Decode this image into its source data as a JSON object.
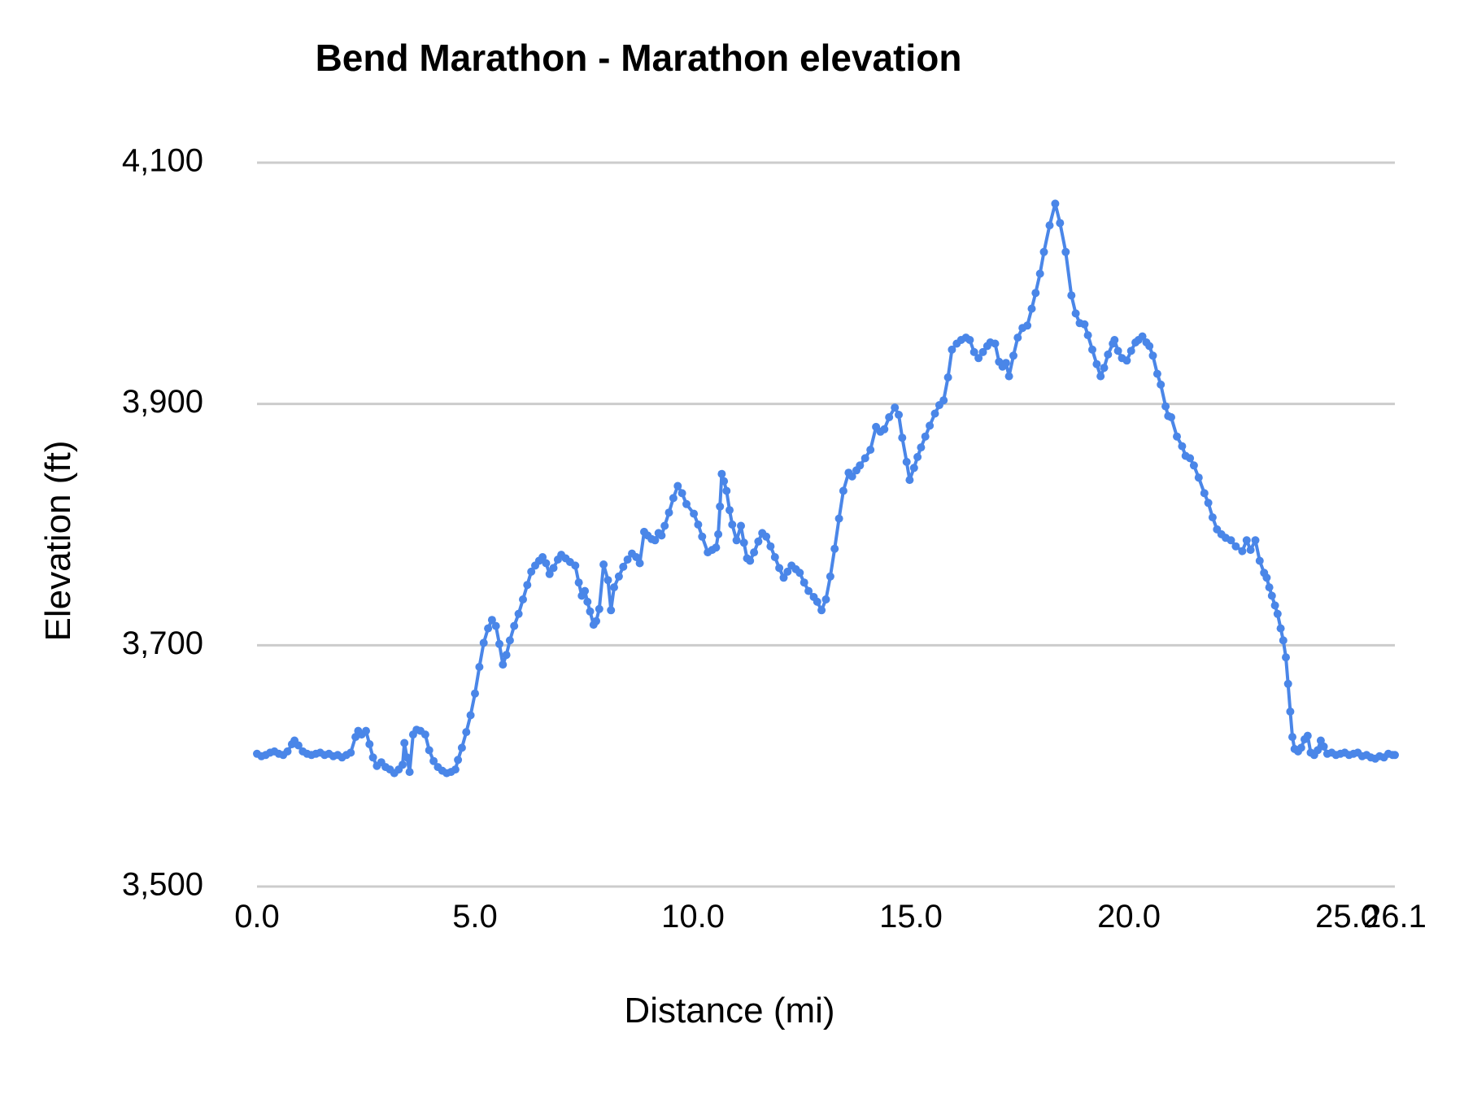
{
  "chart_data": {
    "type": "line",
    "title": "Bend Marathon - Marathon elevation",
    "xlabel": "Distance (mi)",
    "ylabel": "Elevation (ft)",
    "xlim": [
      0,
      26.1
    ],
    "ylim": [
      3500,
      4100
    ],
    "grid": "horizontal-only",
    "legend": "none",
    "marker_style": "point-line",
    "colors": {
      "series": "#4a86e8",
      "gridline": "#cccccc",
      "text": "#000000",
      "background": "#ffffff"
    },
    "x_ticks": [
      {
        "value": 0,
        "label": "0.0"
      },
      {
        "value": 5,
        "label": "5.0"
      },
      {
        "value": 10,
        "label": "10.0"
      },
      {
        "value": 15,
        "label": "15.0"
      },
      {
        "value": 20,
        "label": "20.0"
      },
      {
        "value": 25,
        "label": "25.0"
      },
      {
        "value": 26.1,
        "label": "26.1"
      }
    ],
    "y_ticks": [
      {
        "value": 3500,
        "label": "3,500"
      },
      {
        "value": 3700,
        "label": "3,700"
      },
      {
        "value": 3900,
        "label": "3,900"
      },
      {
        "value": 4100,
        "label": "4,100"
      }
    ],
    "series": [
      {
        "name": "Marathon elevation",
        "points": [
          [
            0.0,
            3610
          ],
          [
            0.1,
            3608
          ],
          [
            0.2,
            3609
          ],
          [
            0.3,
            3611
          ],
          [
            0.4,
            3612
          ],
          [
            0.5,
            3610
          ],
          [
            0.6,
            3609
          ],
          [
            0.7,
            3612
          ],
          [
            0.8,
            3618
          ],
          [
            0.86,
            3621
          ],
          [
            0.95,
            3617
          ],
          [
            1.05,
            3612
          ],
          [
            1.15,
            3610
          ],
          [
            1.25,
            3609
          ],
          [
            1.35,
            3610
          ],
          [
            1.45,
            3611
          ],
          [
            1.55,
            3609
          ],
          [
            1.65,
            3610
          ],
          [
            1.75,
            3608
          ],
          [
            1.85,
            3609
          ],
          [
            1.95,
            3607
          ],
          [
            2.05,
            3609
          ],
          [
            2.15,
            3611
          ],
          [
            2.26,
            3624
          ],
          [
            2.32,
            3629
          ],
          [
            2.4,
            3626
          ],
          [
            2.5,
            3629
          ],
          [
            2.58,
            3618
          ],
          [
            2.66,
            3607
          ],
          [
            2.75,
            3600
          ],
          [
            2.85,
            3603
          ],
          [
            2.95,
            3599
          ],
          [
            3.05,
            3597
          ],
          [
            3.15,
            3594
          ],
          [
            3.25,
            3597
          ],
          [
            3.34,
            3601
          ],
          [
            3.38,
            3619
          ],
          [
            3.44,
            3607
          ],
          [
            3.5,
            3595
          ],
          [
            3.58,
            3626
          ],
          [
            3.66,
            3630
          ],
          [
            3.75,
            3629
          ],
          [
            3.86,
            3626
          ],
          [
            3.95,
            3613
          ],
          [
            4.05,
            3604
          ],
          [
            4.15,
            3599
          ],
          [
            4.25,
            3596
          ],
          [
            4.35,
            3594
          ],
          [
            4.45,
            3595
          ],
          [
            4.55,
            3597
          ],
          [
            4.61,
            3605
          ],
          [
            4.7,
            3615
          ],
          [
            4.8,
            3628
          ],
          [
            4.9,
            3642
          ],
          [
            5.0,
            3660
          ],
          [
            5.1,
            3682
          ],
          [
            5.2,
            3702
          ],
          [
            5.3,
            3714
          ],
          [
            5.39,
            3721
          ],
          [
            5.48,
            3716
          ],
          [
            5.56,
            3701
          ],
          [
            5.64,
            3684
          ],
          [
            5.72,
            3692
          ],
          [
            5.8,
            3704
          ],
          [
            5.9,
            3716
          ],
          [
            6.0,
            3726
          ],
          [
            6.1,
            3738
          ],
          [
            6.2,
            3750
          ],
          [
            6.29,
            3761
          ],
          [
            6.38,
            3766
          ],
          [
            6.47,
            3770
          ],
          [
            6.55,
            3773
          ],
          [
            6.63,
            3768
          ],
          [
            6.71,
            3759
          ],
          [
            6.8,
            3764
          ],
          [
            6.9,
            3771
          ],
          [
            6.98,
            3775
          ],
          [
            7.08,
            3772
          ],
          [
            7.18,
            3769
          ],
          [
            7.3,
            3766
          ],
          [
            7.38,
            3752
          ],
          [
            7.45,
            3741
          ],
          [
            7.52,
            3745
          ],
          [
            7.58,
            3736
          ],
          [
            7.64,
            3728
          ],
          [
            7.72,
            3717
          ],
          [
            7.78,
            3720
          ],
          [
            7.85,
            3730
          ],
          [
            7.95,
            3767
          ],
          [
            8.05,
            3754
          ],
          [
            8.12,
            3729
          ],
          [
            8.19,
            3748
          ],
          [
            8.3,
            3757
          ],
          [
            8.4,
            3765
          ],
          [
            8.5,
            3771
          ],
          [
            8.6,
            3776
          ],
          [
            8.7,
            3773
          ],
          [
            8.78,
            3768
          ],
          [
            8.88,
            3794
          ],
          [
            8.96,
            3791
          ],
          [
            9.05,
            3788
          ],
          [
            9.13,
            3787
          ],
          [
            9.21,
            3793
          ],
          [
            9.28,
            3791
          ],
          [
            9.35,
            3799
          ],
          [
            9.45,
            3810
          ],
          [
            9.55,
            3822
          ],
          [
            9.65,
            3832
          ],
          [
            9.75,
            3826
          ],
          [
            9.85,
            3817
          ],
          [
            10.02,
            3809
          ],
          [
            10.12,
            3800
          ],
          [
            10.21,
            3790
          ],
          [
            10.34,
            3777
          ],
          [
            10.44,
            3779
          ],
          [
            10.53,
            3781
          ],
          [
            10.58,
            3792
          ],
          [
            10.62,
            3815
          ],
          [
            10.66,
            3842
          ],
          [
            10.71,
            3836
          ],
          [
            10.77,
            3828
          ],
          [
            10.84,
            3812
          ],
          [
            10.9,
            3800
          ],
          [
            11.0,
            3787
          ],
          [
            11.1,
            3799
          ],
          [
            11.17,
            3785
          ],
          [
            11.24,
            3772
          ],
          [
            11.31,
            3770
          ],
          [
            11.4,
            3777
          ],
          [
            11.5,
            3786
          ],
          [
            11.59,
            3793
          ],
          [
            11.68,
            3790
          ],
          [
            11.78,
            3782
          ],
          [
            11.88,
            3773
          ],
          [
            11.98,
            3764
          ],
          [
            12.08,
            3756
          ],
          [
            12.17,
            3761
          ],
          [
            12.26,
            3766
          ],
          [
            12.36,
            3763
          ],
          [
            12.45,
            3760
          ],
          [
            12.55,
            3752
          ],
          [
            12.65,
            3745
          ],
          [
            12.77,
            3740
          ],
          [
            12.85,
            3736
          ],
          [
            12.95,
            3729
          ],
          [
            13.05,
            3738
          ],
          [
            13.15,
            3757
          ],
          [
            13.25,
            3780
          ],
          [
            13.35,
            3805
          ],
          [
            13.45,
            3828
          ],
          [
            13.57,
            3843
          ],
          [
            13.65,
            3840
          ],
          [
            13.75,
            3845
          ],
          [
            13.83,
            3849
          ],
          [
            13.95,
            3855
          ],
          [
            14.07,
            3862
          ],
          [
            14.2,
            3881
          ],
          [
            14.3,
            3877
          ],
          [
            14.39,
            3879
          ],
          [
            14.5,
            3889
          ],
          [
            14.63,
            3897
          ],
          [
            14.72,
            3891
          ],
          [
            14.8,
            3872
          ],
          [
            14.9,
            3852
          ],
          [
            14.97,
            3837
          ],
          [
            15.07,
            3847
          ],
          [
            15.15,
            3856
          ],
          [
            15.23,
            3864
          ],
          [
            15.33,
            3873
          ],
          [
            15.43,
            3882
          ],
          [
            15.55,
            3892
          ],
          [
            15.65,
            3899
          ],
          [
            15.75,
            3903
          ],
          [
            15.85,
            3922
          ],
          [
            15.94,
            3945
          ],
          [
            16.05,
            3950
          ],
          [
            16.15,
            3953
          ],
          [
            16.26,
            3955
          ],
          [
            16.35,
            3953
          ],
          [
            16.45,
            3943
          ],
          [
            16.55,
            3938
          ],
          [
            16.65,
            3943
          ],
          [
            16.75,
            3948
          ],
          [
            16.82,
            3951
          ],
          [
            16.93,
            3950
          ],
          [
            17.02,
            3935
          ],
          [
            17.1,
            3931
          ],
          [
            17.18,
            3934
          ],
          [
            17.25,
            3923
          ],
          [
            17.35,
            3940
          ],
          [
            17.45,
            3955
          ],
          [
            17.56,
            3963
          ],
          [
            17.67,
            3965
          ],
          [
            17.77,
            3979
          ],
          [
            17.86,
            3992
          ],
          [
            17.96,
            4008
          ],
          [
            18.05,
            4026
          ],
          [
            18.18,
            4048
          ],
          [
            18.31,
            4066
          ],
          [
            18.42,
            4050
          ],
          [
            18.55,
            4026
          ],
          [
            18.68,
            3990
          ],
          [
            18.78,
            3975
          ],
          [
            18.87,
            3967
          ],
          [
            18.98,
            3966
          ],
          [
            19.06,
            3957
          ],
          [
            19.16,
            3945
          ],
          [
            19.26,
            3933
          ],
          [
            19.35,
            3923
          ],
          [
            19.43,
            3930
          ],
          [
            19.52,
            3941
          ],
          [
            19.63,
            3950
          ],
          [
            19.67,
            3953
          ],
          [
            19.75,
            3944
          ],
          [
            19.84,
            3938
          ],
          [
            19.95,
            3936
          ],
          [
            20.05,
            3944
          ],
          [
            20.15,
            3951
          ],
          [
            20.22,
            3953
          ],
          [
            20.31,
            3956
          ],
          [
            20.4,
            3951
          ],
          [
            20.47,
            3948
          ],
          [
            20.55,
            3940
          ],
          [
            20.65,
            3925
          ],
          [
            20.73,
            3916
          ],
          [
            20.84,
            3898
          ],
          [
            20.9,
            3890
          ],
          [
            20.97,
            3889
          ],
          [
            21.1,
            3873
          ],
          [
            21.22,
            3865
          ],
          [
            21.3,
            3857
          ],
          [
            21.4,
            3855
          ],
          [
            21.49,
            3849
          ],
          [
            21.6,
            3839
          ],
          [
            21.73,
            3826
          ],
          [
            21.82,
            3818
          ],
          [
            21.92,
            3806
          ],
          [
            22.02,
            3796
          ],
          [
            22.12,
            3792
          ],
          [
            22.22,
            3789
          ],
          [
            22.34,
            3787
          ],
          [
            22.45,
            3782
          ],
          [
            22.6,
            3778
          ],
          [
            22.7,
            3787
          ],
          [
            22.79,
            3779
          ],
          [
            22.9,
            3787
          ],
          [
            23.0,
            3770
          ],
          [
            23.1,
            3760
          ],
          [
            23.16,
            3756
          ],
          [
            23.22,
            3748
          ],
          [
            23.28,
            3741
          ],
          [
            23.35,
            3733
          ],
          [
            23.41,
            3726
          ],
          [
            23.48,
            3714
          ],
          [
            23.54,
            3704
          ],
          [
            23.6,
            3690
          ],
          [
            23.65,
            3668
          ],
          [
            23.7,
            3645
          ],
          [
            23.75,
            3624
          ],
          [
            23.8,
            3614
          ],
          [
            23.88,
            3612
          ],
          [
            23.95,
            3615
          ],
          [
            24.03,
            3622
          ],
          [
            24.1,
            3625
          ],
          [
            24.17,
            3611
          ],
          [
            24.25,
            3609
          ],
          [
            24.33,
            3613
          ],
          [
            24.4,
            3621
          ],
          [
            24.47,
            3616
          ],
          [
            24.55,
            3610
          ],
          [
            24.65,
            3611
          ],
          [
            24.75,
            3609
          ],
          [
            24.85,
            3610
          ],
          [
            24.95,
            3611
          ],
          [
            25.05,
            3609
          ],
          [
            25.15,
            3610
          ],
          [
            25.25,
            3611
          ],
          [
            25.35,
            3608
          ],
          [
            25.45,
            3609
          ],
          [
            25.55,
            3607
          ],
          [
            25.65,
            3606
          ],
          [
            25.75,
            3608
          ],
          [
            25.85,
            3607
          ],
          [
            25.95,
            3610
          ],
          [
            26.05,
            3609
          ],
          [
            26.1,
            3609
          ]
        ]
      }
    ]
  }
}
